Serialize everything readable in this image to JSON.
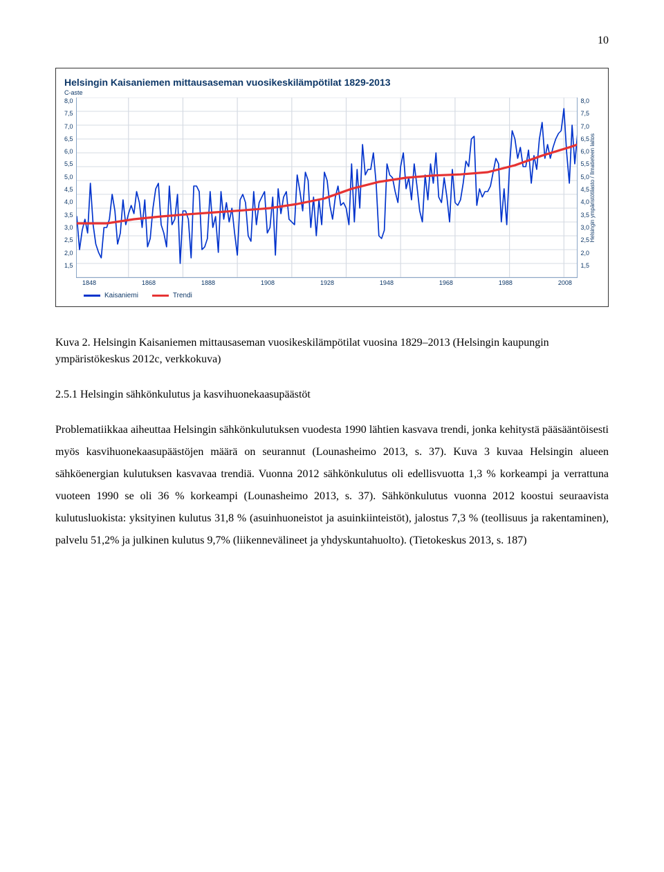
{
  "page_number": "10",
  "chart": {
    "title": "Helsingin Kaisaniemen mittausaseman vuosikeskilämpötilat 1829-2013",
    "y_unit": "C-aste",
    "attribution": "Helsingin ympäristötilasto / Ilmatieteen laitos",
    "type": "line",
    "grid_color": "#d6dbe3",
    "axis_color": "#8aa5c6",
    "background_color": "#ffffff",
    "ylim": [
      1.5,
      8.0
    ],
    "ytick_step": 0.5,
    "yticks": [
      "8,0",
      "7,5",
      "7,0",
      "6,5",
      "6,0",
      "5,5",
      "5,0",
      "4,5",
      "4,0",
      "3,5",
      "3,0",
      "2,5",
      "2,0",
      "1,5"
    ],
    "xlim": [
      1829,
      2013
    ],
    "xticks": [
      "1848",
      "1868",
      "1888",
      "1908",
      "1928",
      "1948",
      "1968",
      "1988",
      "2008"
    ],
    "legend": [
      {
        "label": "Kaisaniemi",
        "color": "#0033cc"
      },
      {
        "label": "Trendi",
        "color": "#e63333"
      }
    ],
    "series": {
      "kaisaniemi": {
        "color": "#0033cc",
        "width": 1.4,
        "data": [
          [
            1829,
            3.7
          ],
          [
            1830,
            2.5
          ],
          [
            1831,
            3.2
          ],
          [
            1832,
            3.6
          ],
          [
            1833,
            3.1
          ],
          [
            1834,
            4.9
          ],
          [
            1835,
            3.4
          ],
          [
            1836,
            2.7
          ],
          [
            1837,
            2.4
          ],
          [
            1838,
            2.2
          ],
          [
            1839,
            3.3
          ],
          [
            1840,
            3.3
          ],
          [
            1841,
            3.6
          ],
          [
            1842,
            4.5
          ],
          [
            1843,
            3.9
          ],
          [
            1844,
            2.7
          ],
          [
            1845,
            3.1
          ],
          [
            1846,
            4.3
          ],
          [
            1847,
            3.4
          ],
          [
            1848,
            3.8
          ],
          [
            1849,
            4.1
          ],
          [
            1850,
            3.8
          ],
          [
            1851,
            4.6
          ],
          [
            1852,
            4.2
          ],
          [
            1853,
            3.3
          ],
          [
            1854,
            4.3
          ],
          [
            1855,
            2.6
          ],
          [
            1856,
            2.9
          ],
          [
            1857,
            4.0
          ],
          [
            1858,
            4.7
          ],
          [
            1859,
            4.9
          ],
          [
            1860,
            3.4
          ],
          [
            1861,
            3.1
          ],
          [
            1862,
            2.6
          ],
          [
            1863,
            4.8
          ],
          [
            1864,
            3.4
          ],
          [
            1865,
            3.6
          ],
          [
            1866,
            4.5
          ],
          [
            1867,
            2.0
          ],
          [
            1868,
            3.9
          ],
          [
            1869,
            3.9
          ],
          [
            1870,
            3.6
          ],
          [
            1871,
            2.2
          ],
          [
            1872,
            4.8
          ],
          [
            1873,
            4.8
          ],
          [
            1874,
            4.6
          ],
          [
            1875,
            2.5
          ],
          [
            1876,
            2.6
          ],
          [
            1877,
            2.9
          ],
          [
            1878,
            4.6
          ],
          [
            1879,
            3.3
          ],
          [
            1880,
            3.7
          ],
          [
            1881,
            2.4
          ],
          [
            1882,
            4.6
          ],
          [
            1883,
            3.6
          ],
          [
            1884,
            4.2
          ],
          [
            1885,
            3.5
          ],
          [
            1886,
            4.0
          ],
          [
            1887,
            3.1
          ],
          [
            1888,
            2.3
          ],
          [
            1889,
            4.3
          ],
          [
            1890,
            4.5
          ],
          [
            1891,
            4.2
          ],
          [
            1892,
            3.0
          ],
          [
            1893,
            2.8
          ],
          [
            1894,
            4.6
          ],
          [
            1895,
            3.4
          ],
          [
            1896,
            4.2
          ],
          [
            1897,
            4.4
          ],
          [
            1898,
            4.6
          ],
          [
            1899,
            3.1
          ],
          [
            1900,
            3.3
          ],
          [
            1901,
            4.4
          ],
          [
            1902,
            2.3
          ],
          [
            1903,
            4.7
          ],
          [
            1904,
            3.8
          ],
          [
            1905,
            4.4
          ],
          [
            1906,
            4.6
          ],
          [
            1907,
            3.6
          ],
          [
            1908,
            3.5
          ],
          [
            1909,
            3.4
          ],
          [
            1910,
            5.2
          ],
          [
            1911,
            4.6
          ],
          [
            1912,
            3.9
          ],
          [
            1913,
            5.3
          ],
          [
            1914,
            5.0
          ],
          [
            1915,
            3.3
          ],
          [
            1916,
            4.4
          ],
          [
            1917,
            3.0
          ],
          [
            1918,
            4.3
          ],
          [
            1919,
            3.4
          ],
          [
            1920,
            5.3
          ],
          [
            1921,
            5.0
          ],
          [
            1922,
            4.1
          ],
          [
            1923,
            3.6
          ],
          [
            1924,
            4.4
          ],
          [
            1925,
            4.8
          ],
          [
            1926,
            4.1
          ],
          [
            1927,
            4.2
          ],
          [
            1928,
            4.0
          ],
          [
            1929,
            3.4
          ],
          [
            1930,
            5.6
          ],
          [
            1931,
            3.5
          ],
          [
            1932,
            5.4
          ],
          [
            1933,
            4.0
          ],
          [
            1934,
            6.3
          ],
          [
            1935,
            5.2
          ],
          [
            1936,
            5.4
          ],
          [
            1937,
            5.4
          ],
          [
            1938,
            6.0
          ],
          [
            1939,
            4.9
          ],
          [
            1940,
            3.0
          ],
          [
            1941,
            2.9
          ],
          [
            1942,
            3.2
          ],
          [
            1943,
            5.6
          ],
          [
            1944,
            5.2
          ],
          [
            1945,
            5.1
          ],
          [
            1946,
            4.6
          ],
          [
            1947,
            4.2
          ],
          [
            1948,
            5.5
          ],
          [
            1949,
            6.0
          ],
          [
            1950,
            4.7
          ],
          [
            1951,
            5.1
          ],
          [
            1952,
            4.3
          ],
          [
            1953,
            5.6
          ],
          [
            1954,
            4.8
          ],
          [
            1955,
            3.9
          ],
          [
            1956,
            3.5
          ],
          [
            1957,
            5.2
          ],
          [
            1958,
            4.3
          ],
          [
            1959,
            5.6
          ],
          [
            1960,
            4.9
          ],
          [
            1961,
            6.0
          ],
          [
            1962,
            4.4
          ],
          [
            1963,
            4.2
          ],
          [
            1964,
            5.1
          ],
          [
            1965,
            4.4
          ],
          [
            1966,
            3.5
          ],
          [
            1967,
            5.4
          ],
          [
            1968,
            4.2
          ],
          [
            1969,
            4.1
          ],
          [
            1970,
            4.3
          ],
          [
            1971,
            4.9
          ],
          [
            1972,
            5.7
          ],
          [
            1973,
            5.5
          ],
          [
            1974,
            6.5
          ],
          [
            1975,
            6.6
          ],
          [
            1976,
            4.1
          ],
          [
            1977,
            4.7
          ],
          [
            1978,
            4.4
          ],
          [
            1979,
            4.6
          ],
          [
            1980,
            4.6
          ],
          [
            1981,
            4.8
          ],
          [
            1982,
            5.3
          ],
          [
            1983,
            5.8
          ],
          [
            1984,
            5.6
          ],
          [
            1985,
            3.5
          ],
          [
            1986,
            4.7
          ],
          [
            1987,
            3.4
          ],
          [
            1988,
            5.5
          ],
          [
            1989,
            6.8
          ],
          [
            1990,
            6.5
          ],
          [
            1991,
            5.8
          ],
          [
            1992,
            6.2
          ],
          [
            1993,
            5.5
          ],
          [
            1994,
            5.5
          ],
          [
            1995,
            6.1
          ],
          [
            1996,
            4.9
          ],
          [
            1997,
            5.9
          ],
          [
            1998,
            5.4
          ],
          [
            1999,
            6.5
          ],
          [
            2000,
            7.1
          ],
          [
            2001,
            5.8
          ],
          [
            2002,
            6.3
          ],
          [
            2003,
            5.8
          ],
          [
            2004,
            6.2
          ],
          [
            2005,
            6.5
          ],
          [
            2006,
            6.7
          ],
          [
            2007,
            6.8
          ],
          [
            2008,
            7.6
          ],
          [
            2009,
            6.0
          ],
          [
            2010,
            4.9
          ],
          [
            2011,
            7.0
          ],
          [
            2012,
            5.6
          ],
          [
            2013,
            6.7
          ]
        ]
      },
      "trendi": {
        "color": "#e63333",
        "width": 3.2,
        "data": [
          [
            1829,
            3.45
          ],
          [
            1840,
            3.45
          ],
          [
            1850,
            3.6
          ],
          [
            1860,
            3.7
          ],
          [
            1870,
            3.78
          ],
          [
            1880,
            3.85
          ],
          [
            1890,
            3.92
          ],
          [
            1900,
            4.0
          ],
          [
            1910,
            4.15
          ],
          [
            1920,
            4.35
          ],
          [
            1930,
            4.7
          ],
          [
            1940,
            4.95
          ],
          [
            1950,
            5.1
          ],
          [
            1960,
            5.18
          ],
          [
            1970,
            5.22
          ],
          [
            1980,
            5.3
          ],
          [
            1990,
            5.55
          ],
          [
            2000,
            5.9
          ],
          [
            2010,
            6.2
          ],
          [
            2013,
            6.3
          ]
        ]
      }
    }
  },
  "caption_label": "Kuva 2.",
  "caption_text": "Helsingin Kaisaniemen mittausaseman vuosikeskilämpötilat vuosina 1829–2013 (Helsingin kaupungin ympäristökeskus 2012c, verkkokuva)",
  "section_heading": "2.5.1 Helsingin sähkönkulutus ja kasvihuonekaasupäästöt",
  "body": "Problematiikkaa aiheuttaa Helsingin sähkönkulutuksen vuodesta 1990 lähtien kasvava trendi, jonka kehitystä pääsääntöisesti myös kasvihuonekaasupäästöjen määrä on seurannut (Lounasheimo 2013, s. 37). Kuva 3 kuvaa Helsingin alueen sähköenergian kulutuksen kasvavaa trendiä. Vuonna 2012 sähkönkulutus oli edellisvuotta 1,3 % korkeampi ja verrattuna vuoteen 1990 se oli 36 % korkeampi (Lounasheimo 2013, s. 37). Sähkönkulutus vuonna 2012 koostui seuraavista kulutusluokista: yksityinen kulutus 31,8 % (asuinhuoneistot ja asuinkiinteistöt), jalostus 7,3 % (teollisuus ja rakentaminen), palvelu 51,2% ja julkinen kulutus 9,7% (liikennevälineet ja yhdyskuntahuolto). (Tietokeskus 2013, s. 187)"
}
